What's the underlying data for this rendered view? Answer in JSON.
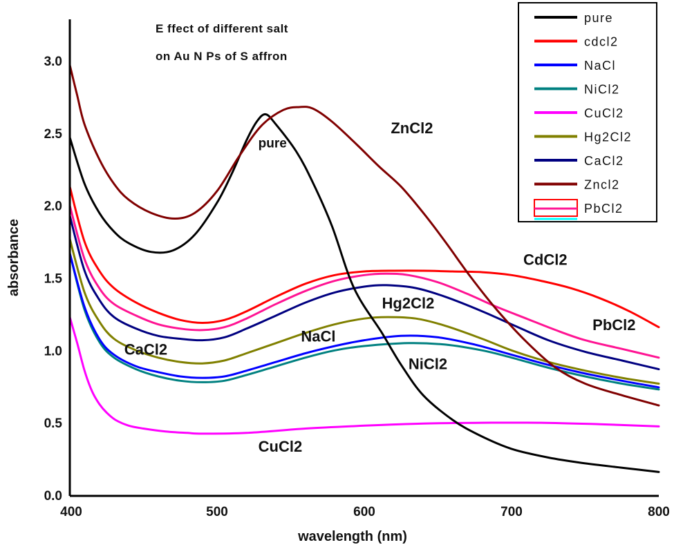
{
  "chart_data": {
    "type": "line",
    "title": "Effect of different salt on Au NPs of Saffron",
    "title_lines": [
      "E ffect of different salt",
      "on Au N Ps of S affron"
    ],
    "xlabel": "wavelength (nm)",
    "ylabel": "absorbance",
    "xlim": [
      400,
      800
    ],
    "ylim": [
      0.0,
      3.3
    ],
    "xticks": [
      400,
      500,
      600,
      700,
      800
    ],
    "xtick_labels": [
      "400",
      "500",
      "600",
      "700",
      "800"
    ],
    "yticks": [
      0.0,
      0.5,
      1.0,
      1.5,
      2.0,
      2.5,
      3.0
    ],
    "ytick_labels": [
      "0.0",
      "0.5",
      "1.0",
      "1.5",
      "2.0",
      "2.5",
      "3.0"
    ],
    "grid": false,
    "legend_position": "top-right",
    "series": [
      {
        "name": "pure",
        "legend_label": "pure",
        "color": "#000000",
        "x": [
          400,
          410,
          420,
          430,
          440,
          455,
          470,
          485,
          500,
          510,
          520,
          527,
          533,
          540,
          554,
          565,
          578,
          593,
          612,
          625,
          640,
          660,
          678,
          700,
          725,
          750,
          775,
          800
        ],
        "y": [
          2.47,
          2.15,
          1.95,
          1.82,
          1.74,
          1.68,
          1.69,
          1.8,
          2.02,
          2.22,
          2.45,
          2.58,
          2.63,
          2.56,
          2.37,
          2.16,
          1.86,
          1.43,
          1.12,
          0.9,
          0.69,
          0.52,
          0.415,
          0.32,
          0.26,
          0.22,
          0.19,
          0.16
        ]
      },
      {
        "name": "CdCl2",
        "legend_label": "cdcl2",
        "color": "#ff0000",
        "x": [
          400,
          410,
          420,
          430,
          445,
          460,
          475,
          490,
          505,
          520,
          540,
          560,
          580,
          600,
          620,
          640,
          660,
          680,
          700,
          720,
          740,
          760,
          780,
          800
        ],
        "y": [
          2.13,
          1.75,
          1.55,
          1.43,
          1.33,
          1.26,
          1.21,
          1.19,
          1.21,
          1.27,
          1.37,
          1.46,
          1.52,
          1.545,
          1.55,
          1.55,
          1.545,
          1.54,
          1.52,
          1.48,
          1.43,
          1.36,
          1.27,
          1.16
        ]
      },
      {
        "name": "NaCl",
        "legend_label": "NaCl",
        "color": "#0000ff",
        "x": [
          400,
          410,
          420,
          430,
          445,
          460,
          475,
          490,
          505,
          520,
          540,
          560,
          580,
          600,
          625,
          650,
          675,
          700,
          725,
          750,
          775,
          800
        ],
        "y": [
          1.67,
          1.3,
          1.08,
          0.97,
          0.89,
          0.85,
          0.82,
          0.81,
          0.82,
          0.86,
          0.92,
          0.98,
          1.03,
          1.07,
          1.1,
          1.09,
          1.04,
          0.97,
          0.9,
          0.84,
          0.79,
          0.745
        ]
      },
      {
        "name": "NiCl2",
        "legend_label": "NiCl2",
        "color": "#008080",
        "x": [
          400,
          410,
          420,
          430,
          445,
          460,
          475,
          490,
          505,
          520,
          540,
          560,
          580,
          600,
          630,
          655,
          680,
          700,
          725,
          750,
          775,
          800
        ],
        "y": [
          1.67,
          1.28,
          1.06,
          0.95,
          0.87,
          0.82,
          0.79,
          0.78,
          0.79,
          0.83,
          0.89,
          0.95,
          1.0,
          1.03,
          1.05,
          1.04,
          1.0,
          0.95,
          0.88,
          0.82,
          0.77,
          0.73
        ]
      },
      {
        "name": "CuCl2",
        "legend_label": "CuCl2",
        "color": "#ff00ff",
        "x": [
          400,
          405,
          410,
          415,
          420,
          425,
          431,
          440,
          450,
          465,
          480,
          490,
          520,
          560,
          600,
          640,
          680,
          720,
          760,
          800
        ],
        "y": [
          1.23,
          1.05,
          0.86,
          0.72,
          0.63,
          0.57,
          0.52,
          0.48,
          0.46,
          0.44,
          0.43,
          0.425,
          0.43,
          0.46,
          0.48,
          0.495,
          0.5,
          0.5,
          0.49,
          0.475
        ]
      },
      {
        "name": "Hg2Cl2",
        "legend_label": "Hg2Cl2",
        "color": "#808000",
        "x": [
          400,
          410,
          420,
          430,
          445,
          460,
          475,
          490,
          505,
          520,
          540,
          560,
          580,
          600,
          616,
          635,
          655,
          680,
          700,
          725,
          750,
          775,
          800
        ],
        "y": [
          1.77,
          1.4,
          1.2,
          1.08,
          1.0,
          0.95,
          0.92,
          0.91,
          0.93,
          0.98,
          1.05,
          1.12,
          1.18,
          1.22,
          1.23,
          1.22,
          1.17,
          1.08,
          1.0,
          0.92,
          0.86,
          0.81,
          0.77
        ]
      },
      {
        "name": "CaCl2",
        "legend_label": "CaCl2",
        "color": "#000080",
        "x": [
          400,
          410,
          420,
          430,
          445,
          460,
          475,
          490,
          505,
          520,
          540,
          560,
          580,
          600,
          615,
          635,
          655,
          680,
          700,
          725,
          750,
          775,
          800
        ],
        "y": [
          1.93,
          1.55,
          1.35,
          1.23,
          1.15,
          1.1,
          1.08,
          1.07,
          1.09,
          1.15,
          1.24,
          1.33,
          1.4,
          1.44,
          1.45,
          1.43,
          1.37,
          1.27,
          1.18,
          1.07,
          0.99,
          0.93,
          0.87
        ]
      },
      {
        "name": "ZnCl2",
        "legend_label": "Zncl2",
        "color": "#800000",
        "x": [
          400,
          405,
          410,
          420,
          430,
          440,
          455,
          471,
          485,
          500,
          515,
          530,
          545,
          556,
          565,
          578,
          595,
          610,
          625,
          640,
          655,
          672,
          690,
          710,
          730,
          750,
          775,
          800
        ],
        "y": [
          2.97,
          2.76,
          2.56,
          2.32,
          2.15,
          2.04,
          1.95,
          1.91,
          1.95,
          2.1,
          2.34,
          2.55,
          2.66,
          2.68,
          2.67,
          2.58,
          2.42,
          2.27,
          2.13,
          1.95,
          1.75,
          1.51,
          1.28,
          1.06,
          0.88,
          0.77,
          0.69,
          0.62
        ]
      },
      {
        "name": "PbCl2",
        "legend_label": "PbCl2",
        "color": "#ff1493",
        "x": [
          400,
          410,
          420,
          430,
          445,
          460,
          475,
          490,
          505,
          520,
          540,
          560,
          580,
          600,
          615,
          630,
          650,
          670,
          690,
          710,
          730,
          750,
          775,
          800
        ],
        "y": [
          2.0,
          1.63,
          1.43,
          1.32,
          1.24,
          1.18,
          1.15,
          1.14,
          1.16,
          1.22,
          1.32,
          1.41,
          1.48,
          1.52,
          1.53,
          1.52,
          1.47,
          1.39,
          1.3,
          1.22,
          1.14,
          1.07,
          1.01,
          0.95
        ]
      }
    ],
    "annotations": [
      {
        "text": "pure",
        "x": 528,
        "y": 2.4,
        "size": "small"
      },
      {
        "text": "ZnCl2",
        "x": 618,
        "y": 2.5,
        "size": "large"
      },
      {
        "text": "CdCl2",
        "x": 708,
        "y": 1.59,
        "size": "large"
      },
      {
        "text": "PbCl2",
        "x": 755,
        "y": 1.14,
        "size": "large"
      },
      {
        "text": "Hg2Cl2",
        "x": 612,
        "y": 1.29,
        "size": "large"
      },
      {
        "text": "NaCl",
        "x": 557,
        "y": 1.06,
        "size": "large"
      },
      {
        "text": "CaCl2",
        "x": 437,
        "y": 0.97,
        "size": "large"
      },
      {
        "text": "NiCl2",
        "x": 630,
        "y": 0.87,
        "size": "large"
      },
      {
        "text": "CuCl2",
        "x": 528,
        "y": 0.3,
        "size": "large"
      }
    ]
  }
}
